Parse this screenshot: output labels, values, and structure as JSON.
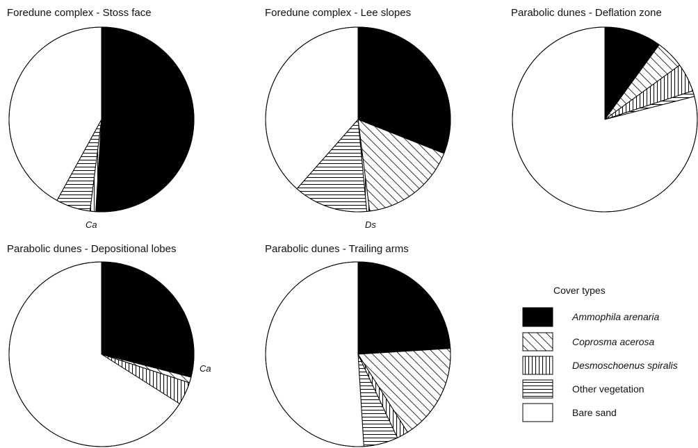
{
  "chart_data": [
    {
      "type": "pie",
      "title": "Foredune complex - Stoss face",
      "slices": [
        {
          "category": "Ammophila arenaria",
          "value": 51
        },
        {
          "category": "Coprosma acerosa",
          "value": 0
        },
        {
          "category": "Desmoschoenus spiralis",
          "value": 1
        },
        {
          "category": "Other vegetation",
          "value": 6
        },
        {
          "category": "Bare sand",
          "value": 42
        }
      ],
      "annotations": [
        {
          "text": "Ca",
          "category": "Coprosma acerosa"
        }
      ]
    },
    {
      "type": "pie",
      "title": "Foredune complex -  Lee slopes",
      "slices": [
        {
          "category": "Ammophila arenaria",
          "value": 31
        },
        {
          "category": "Coprosma acerosa",
          "value": 17
        },
        {
          "category": "Desmoschoenus spiralis",
          "value": 0.5
        },
        {
          "category": "Other vegetation",
          "value": 13
        },
        {
          "category": "Bare sand",
          "value": 38.5
        }
      ],
      "annotations": [
        {
          "text": "Ds",
          "category": "Desmoschoenus spiralis"
        }
      ]
    },
    {
      "type": "pie",
      "title": "Parabolic dunes - Deflation zone",
      "slices": [
        {
          "category": "Ammophila arenaria",
          "value": 10
        },
        {
          "category": "Coprosma acerosa",
          "value": 5
        },
        {
          "category": "Desmoschoenus spiralis",
          "value": 5
        },
        {
          "category": "Other vegetation",
          "value": 1
        },
        {
          "category": "Bare sand",
          "value": 79
        }
      ]
    },
    {
      "type": "pie",
      "title": "Parabolic dunes - Depositional lobes",
      "slices": [
        {
          "category": "Ammophila arenaria",
          "value": 29
        },
        {
          "category": "Coprosma acerosa",
          "value": 1
        },
        {
          "category": "Desmoschoenus spiralis",
          "value": 4
        },
        {
          "category": "Other vegetation",
          "value": 0
        },
        {
          "category": "Bare sand",
          "value": 66
        }
      ],
      "annotations": [
        {
          "text": "Ca",
          "category": "Coprosma acerosa"
        }
      ]
    },
    {
      "type": "pie",
      "title": "Parabolic dunes - Trailing arms",
      "slices": [
        {
          "category": "Ammophila arenaria",
          "value": 24
        },
        {
          "category": "Coprosma acerosa",
          "value": 17
        },
        {
          "category": "Desmoschoenus spiralis",
          "value": 2
        },
        {
          "category": "Other vegetation",
          "value": 6
        },
        {
          "category": "Bare sand",
          "value": 51
        }
      ]
    }
  ],
  "legend": {
    "title": "Cover types",
    "items": [
      {
        "label": "Ammophila arenaria",
        "pattern": "solid-black",
        "italic": true
      },
      {
        "label": "Coprosma acerosa",
        "pattern": "diagonal-hatch",
        "italic": true
      },
      {
        "label": "Desmoschoenus spiralis",
        "pattern": "vertical-hatch",
        "italic": true
      },
      {
        "label": "Other vegetation",
        "pattern": "horizontal-hatch",
        "italic": false
      },
      {
        "label": "Bare sand",
        "pattern": "white",
        "italic": false
      }
    ]
  }
}
